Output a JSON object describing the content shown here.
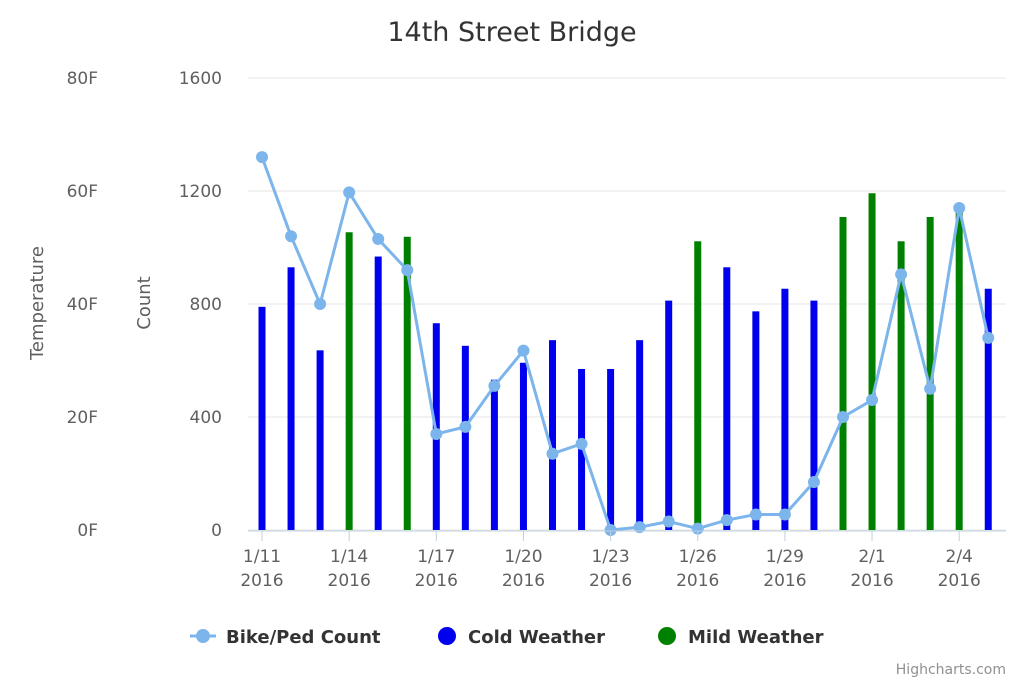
{
  "chart_data": {
    "type": "bar",
    "title": "14th Street Bridge",
    "y_left_outer_label": "Temperature",
    "y_left_inner_label": "Count",
    "temperature_ticks": [
      "0F",
      "20F",
      "40F",
      "60F",
      "80F"
    ],
    "temperature_range": [
      0,
      80
    ],
    "count_ticks": [
      "0",
      "400",
      "800",
      "1200",
      "1600"
    ],
    "count_range": [
      0,
      1600
    ],
    "x_ticks": [
      {
        "line1": "1/11",
        "line2": "2016",
        "day": 0
      },
      {
        "line1": "1/14",
        "line2": "2016",
        "day": 3
      },
      {
        "line1": "1/17",
        "line2": "2016",
        "day": 6
      },
      {
        "line1": "1/20",
        "line2": "2016",
        "day": 9
      },
      {
        "line1": "1/23",
        "line2": "2016",
        "day": 12
      },
      {
        "line1": "1/26",
        "line2": "2016",
        "day": 15
      },
      {
        "line1": "1/29",
        "line2": "2016",
        "day": 18
      },
      {
        "line1": "2/1",
        "line2": "2016",
        "day": 21
      },
      {
        "line1": "2/4",
        "line2": "2016",
        "day": 24
      }
    ],
    "series": [
      {
        "name": "Bike/Ped Count",
        "kind": "line",
        "axis": "count",
        "color": "#7cb5ec",
        "points": [
          {
            "date": "1/11",
            "value": 1320
          },
          {
            "date": "1/12",
            "value": 1040
          },
          {
            "date": "1/13",
            "value": 800
          },
          {
            "date": "1/14",
            "value": 1195
          },
          {
            "date": "1/15",
            "value": 1030
          },
          {
            "date": "1/16",
            "value": 920
          },
          {
            "date": "1/17",
            "value": 340
          },
          {
            "date": "1/18",
            "value": 365
          },
          {
            "date": "1/19",
            "value": 510
          },
          {
            "date": "1/20",
            "value": 635
          },
          {
            "date": "1/21",
            "value": 270
          },
          {
            "date": "1/22",
            "value": 305
          },
          {
            "date": "1/23",
            "value": 0
          },
          {
            "date": "1/24",
            "value": 10
          },
          {
            "date": "1/25",
            "value": 30
          },
          {
            "date": "1/26",
            "value": 5
          },
          {
            "date": "1/27",
            "value": 35
          },
          {
            "date": "1/28",
            "value": 55
          },
          {
            "date": "1/29",
            "value": 55
          },
          {
            "date": "1/30",
            "value": 170
          },
          {
            "date": "1/31",
            "value": 400
          },
          {
            "date": "2/1",
            "value": 460
          },
          {
            "date": "2/2",
            "value": 905
          },
          {
            "date": "2/3",
            "value": 500
          },
          {
            "date": "2/4",
            "value": 1140
          },
          {
            "date": "2/5",
            "value": 680
          }
        ]
      },
      {
        "name": "Cold Weather",
        "kind": "column",
        "axis": "temperature",
        "color": "#0000ee",
        "points": [
          {
            "date": "1/11",
            "value": 39.5
          },
          {
            "date": "1/12",
            "value": 46.5
          },
          {
            "date": "1/13",
            "value": 31.8
          },
          {
            "date": "1/15",
            "value": 48.4
          },
          {
            "date": "1/17",
            "value": 36.6
          },
          {
            "date": "1/18",
            "value": 32.6
          },
          {
            "date": "1/19",
            "value": 26.6
          },
          {
            "date": "1/20",
            "value": 29.6
          },
          {
            "date": "1/21",
            "value": 33.6
          },
          {
            "date": "1/22",
            "value": 28.5
          },
          {
            "date": "1/23",
            "value": 28.5
          },
          {
            "date": "1/24",
            "value": 33.6
          },
          {
            "date": "1/25",
            "value": 40.6
          },
          {
            "date": "1/27",
            "value": 46.5
          },
          {
            "date": "1/28",
            "value": 38.7
          },
          {
            "date": "1/29",
            "value": 42.7
          },
          {
            "date": "1/30",
            "value": 40.6
          },
          {
            "date": "2/5",
            "value": 42.7
          }
        ]
      },
      {
        "name": "Mild Weather",
        "kind": "column",
        "axis": "temperature",
        "color": "#008000",
        "points": [
          {
            "date": "1/14",
            "value": 52.7
          },
          {
            "date": "1/16",
            "value": 51.9
          },
          {
            "date": "1/26",
            "value": 51.1
          },
          {
            "date": "1/31",
            "value": 55.4
          },
          {
            "date": "2/1",
            "value": 59.6
          },
          {
            "date": "2/2",
            "value": 51.1
          },
          {
            "date": "2/3",
            "value": 55.4
          },
          {
            "date": "2/4",
            "value": 57.5
          }
        ]
      }
    ],
    "legend": {
      "position": "bottom-center"
    },
    "grid": true,
    "credits": "Highcharts.com"
  }
}
